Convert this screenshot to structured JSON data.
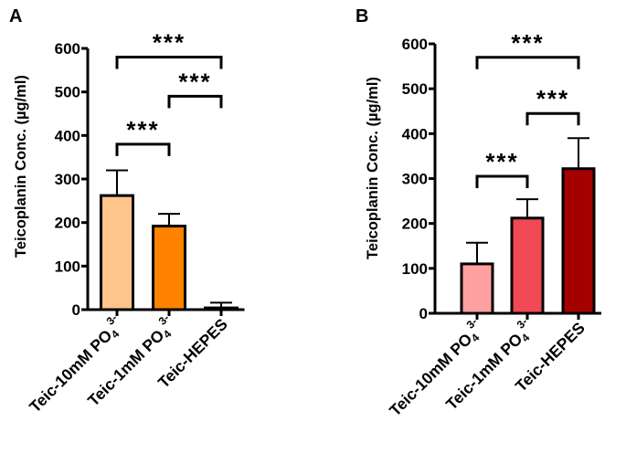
{
  "chart_data": [
    {
      "panel_label": "A",
      "type": "bar",
      "ylabel": "Teicoplanin Conc. (µg/ml)",
      "ylim": [
        0,
        600
      ],
      "yticks": [
        "0",
        "100",
        "200",
        "300",
        "400",
        "500",
        "600"
      ],
      "categories": [
        {
          "main": "Teic-10mM PO",
          "sub": "4",
          "sup": "3-"
        },
        {
          "main": "Teic-1mM PO",
          "sub": "4",
          "sup": "3-"
        },
        {
          "main": "Teic-HEPES",
          "sub": "",
          "sup": ""
        }
      ],
      "values": [
        262,
        192,
        4
      ],
      "errors": [
        58,
        28,
        12
      ],
      "colors": [
        "#FFC48A",
        "#FF8200",
        "#FFFFFF"
      ],
      "significance": [
        {
          "from": 0,
          "to": 1,
          "label": "***",
          "y": 380
        },
        {
          "from": 1,
          "to": 2,
          "label": "***",
          "y": 490
        },
        {
          "from": 0,
          "to": 2,
          "label": "***",
          "y": 580
        }
      ]
    },
    {
      "panel_label": "B",
      "type": "bar",
      "ylabel": "Teicoplanin Conc. (µg/ml)",
      "ylim": [
        0,
        600
      ],
      "yticks": [
        "0",
        "100",
        "200",
        "300",
        "400",
        "500",
        "600"
      ],
      "categories": [
        {
          "main": "Teic-10mM PO",
          "sub": "4",
          "sup": "3-"
        },
        {
          "main": "Teic-1mM PO",
          "sub": "4",
          "sup": "3-"
        },
        {
          "main": "Teic-HEPES",
          "sub": "",
          "sup": ""
        }
      ],
      "values": [
        110,
        212,
        322
      ],
      "errors": [
        47,
        42,
        68
      ],
      "colors": [
        "#FFA0A0",
        "#F04855",
        "#A50000"
      ],
      "significance": [
        {
          "from": 0,
          "to": 1,
          "label": "***",
          "y": 305
        },
        {
          "from": 1,
          "to": 2,
          "label": "***",
          "y": 445
        },
        {
          "from": 0,
          "to": 2,
          "label": "***",
          "y": 570
        }
      ]
    }
  ]
}
